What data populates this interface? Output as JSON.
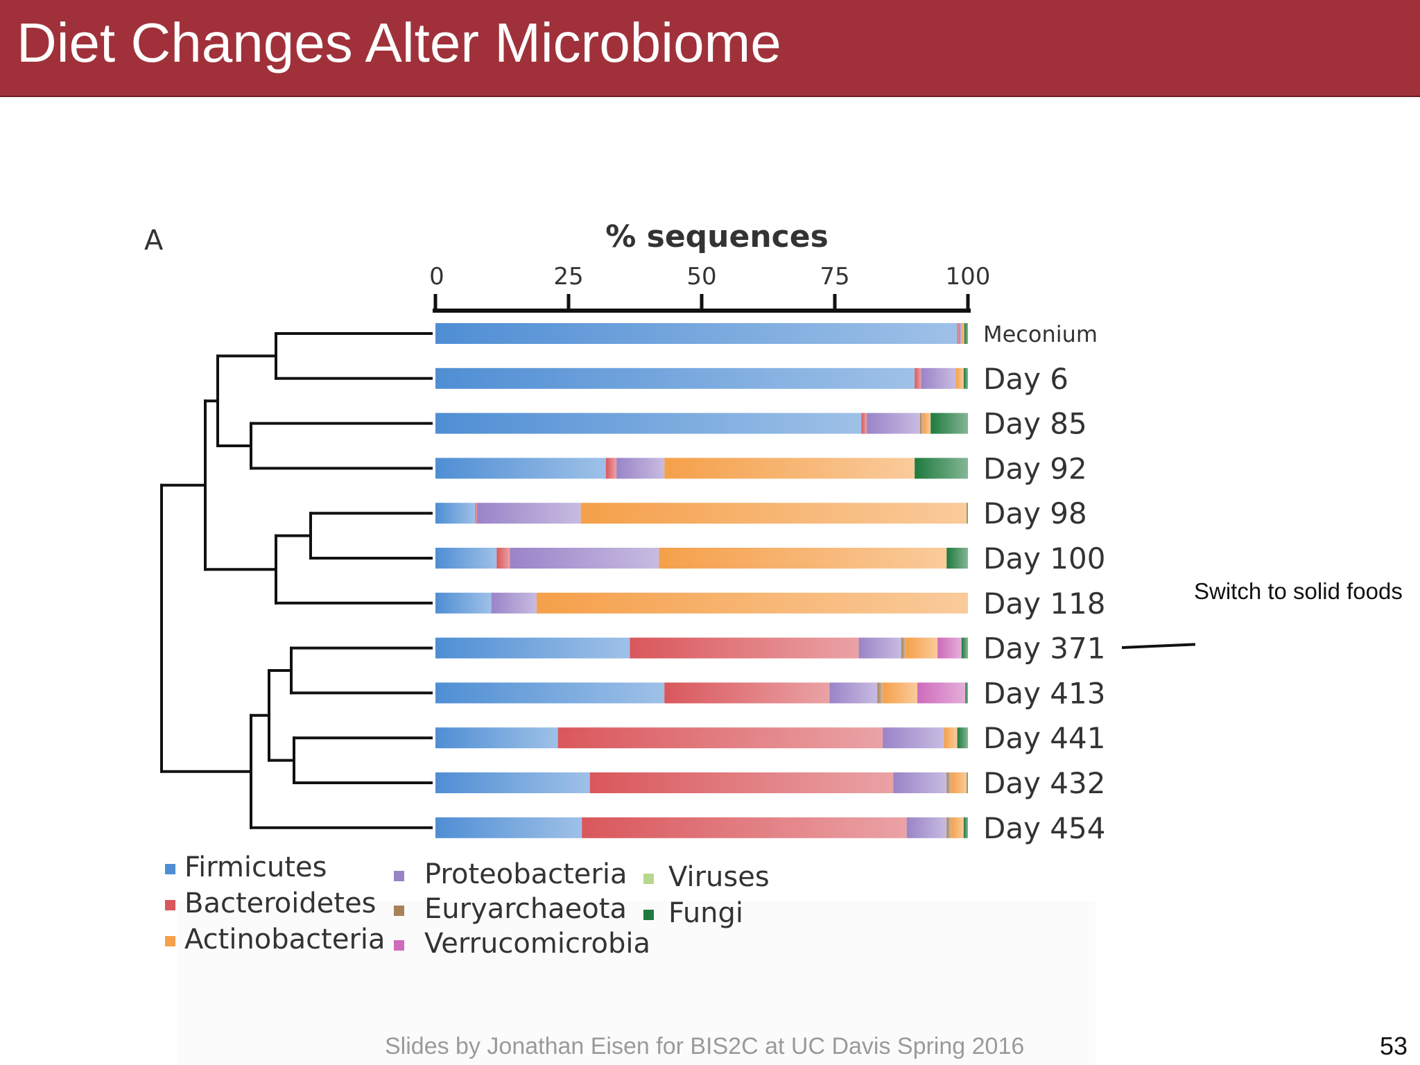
{
  "slide": {
    "title": "Diet Changes Alter Microbiome",
    "footer": "Slides by Jonathan Eisen for BIS2C at UC Davis Spring 2016",
    "slide_number": "53",
    "annotation": "Switch to solid foods"
  },
  "colors": {
    "title_bar": "#a0313a",
    "Firmicutes": "#4f8ed4",
    "Bacteroidetes": "#d9575c",
    "Actinobacteria": "#f5a04a",
    "Proteobacteria": "#9a84c8",
    "Euryarchaeota": "#a88256",
    "Verrucomicrobia": "#cf6bbb",
    "Viruses": "#b7d78e",
    "Fungi": "#1f7a3e"
  },
  "chart_data": {
    "type": "bar",
    "orientation": "horizontal",
    "stacked": true,
    "panel_label": "A",
    "title": "% sequences",
    "xlim": [
      0,
      100
    ],
    "xticks": [
      "0",
      "25",
      "50",
      "75",
      "100"
    ],
    "categories": [
      "Meconium",
      "Day 6",
      "Day 85",
      "Day 92",
      "Day 98",
      "Day 100",
      "Day 118",
      "Day 371",
      "Day 413",
      "Day 441",
      "Day 432",
      "Day 454"
    ],
    "series": [
      {
        "name": "Firmicutes",
        "values": [
          98,
          90,
          80,
          32,
          7.5,
          11.5,
          10.5,
          36.5,
          43,
          23,
          29,
          27.5
        ]
      },
      {
        "name": "Bacteroidetes",
        "values": [
          0.3,
          1.2,
          1,
          2,
          0.3,
          2.5,
          0,
          43,
          31,
          61,
          57,
          61
        ]
      },
      {
        "name": "Proteobacteria",
        "values": [
          0.5,
          6.5,
          10,
          9,
          19.5,
          28,
          8.5,
          8,
          9,
          11.5,
          10,
          7.5
        ]
      },
      {
        "name": "Euryarchaeota",
        "values": [
          0,
          0,
          0.5,
          0,
          0,
          0,
          0,
          0.8,
          1,
          0,
          0.8,
          0.8
        ]
      },
      {
        "name": "Actinobacteria",
        "values": [
          0.5,
          1.5,
          1.5,
          47,
          72.5,
          54,
          81,
          6,
          6.5,
          2.5,
          3,
          2.4
        ]
      },
      {
        "name": "Verrucomicrobia",
        "values": [
          0,
          0,
          0,
          0,
          0,
          0,
          0,
          4.5,
          9,
          0,
          0,
          0
        ]
      },
      {
        "name": "Viruses",
        "values": [
          0,
          0,
          0,
          0,
          0,
          0,
          0,
          0,
          0,
          0,
          0,
          0
        ]
      },
      {
        "name": "Fungi",
        "values": [
          0.7,
          0.8,
          7,
          10,
          0.2,
          4,
          0,
          1.2,
          0.5,
          2,
          0.2,
          0.8
        ]
      }
    ],
    "legend_order": [
      "Firmicutes",
      "Bacteroidetes",
      "Actinobacteria",
      "Proteobacteria",
      "Euryarchaeota",
      "Verrucomicrobia",
      "Viruses",
      "Fungi"
    ],
    "legend_position": "bottom-left",
    "grid": false,
    "dendrogram": "left"
  }
}
